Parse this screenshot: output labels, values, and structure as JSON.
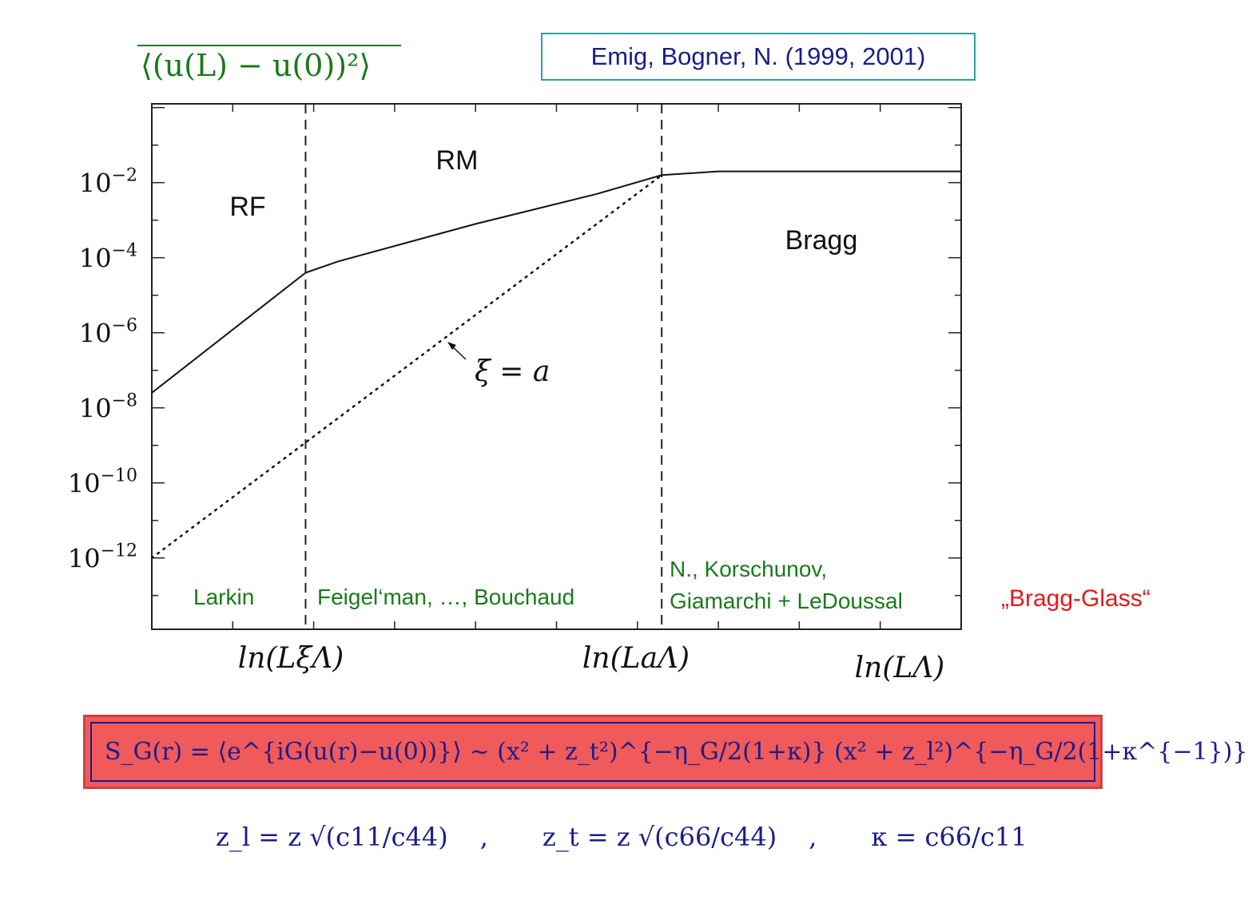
{
  "y_axis_expression": "⟨(u(L) − u(0))²⟩",
  "citation": "Emig, Bogner, N. (1999, 2001)",
  "regions": [
    "RF",
    "RM",
    "Bragg"
  ],
  "annotation": "ξ = a",
  "authors": {
    "larkin": "Larkin",
    "feigelman": "Feigel‘man, …, Bouchaud",
    "korschunov_line1": "N., Korschunov,",
    "korschunov_line2": "Giamarchi + LeDoussal"
  },
  "bragg_glass": "„Bragg-Glass“",
  "structure_factor": "S_G(r) = ⟨e^{iG(u(r)−u(0))}⟩ ~ (x² + z_t²)^{−η_G/2(1+κ)} (x² + z_l²)^{−η_G/2(1+κ^{−1})}",
  "definitions": {
    "zl": "z_l = z √(c11/c44)",
    "zt": "z_t = z √(c66/c44)",
    "kappa": "κ = c66/c11"
  },
  "chart_data": {
    "type": "line",
    "xlabel": "ln(LΛ)",
    "x_ticks": [
      "ln(LξΛ)",
      "ln(LaΛ)"
    ],
    "x_tick_positions": [
      0.19,
      0.63
    ],
    "xlim": [
      0,
      1
    ],
    "yscale": "log",
    "ylim_exp": [
      -13.9,
      0.1
    ],
    "y_ticks": [
      {
        "exp": -2,
        "label": "10^-2"
      },
      {
        "exp": -4,
        "label": "10^-4"
      },
      {
        "exp": -6,
        "label": "10^-6"
      },
      {
        "exp": -8,
        "label": "10^-8"
      },
      {
        "exp": -10,
        "label": "10^-10"
      },
      {
        "exp": -12,
        "label": "10^-12"
      }
    ],
    "vertical_lines_x": [
      0.19,
      0.63
    ],
    "series": [
      {
        "style": "solid",
        "points": [
          [
            0.0,
            -7.6
          ],
          [
            0.19,
            -4.4
          ],
          [
            0.23,
            -4.1
          ],
          [
            0.4,
            -3.1
          ],
          [
            0.55,
            -2.3
          ],
          [
            0.63,
            -1.8
          ],
          [
            0.7,
            -1.7
          ],
          [
            1.0,
            -1.7
          ]
        ]
      },
      {
        "style": "dotted",
        "points": [
          [
            0.0,
            -12.0
          ],
          [
            0.63,
            -1.8
          ]
        ]
      }
    ]
  }
}
